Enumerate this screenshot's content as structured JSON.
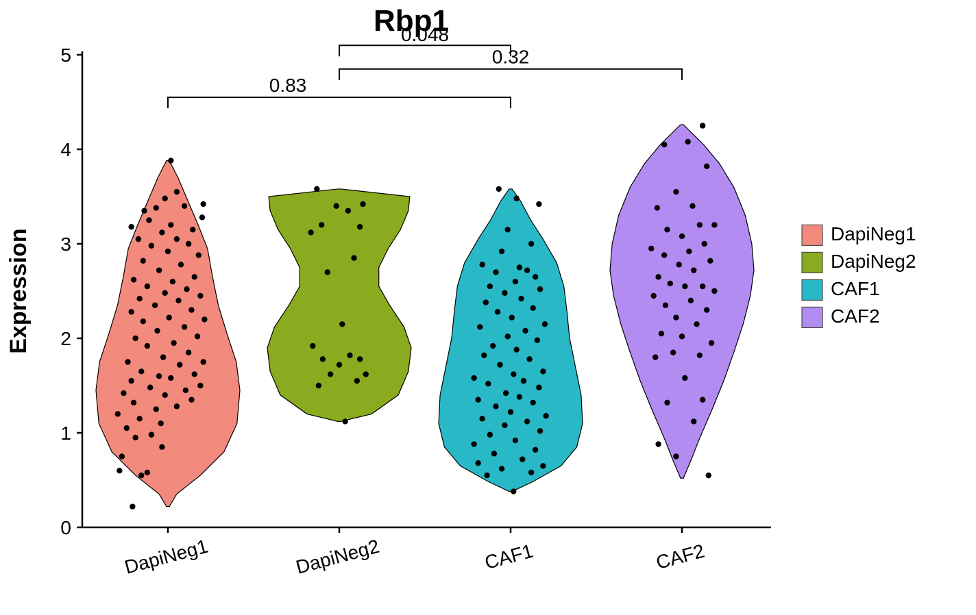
{
  "title": "Rbp1",
  "ylabel": "Expression",
  "ylim": [
    0,
    5
  ],
  "ytick_step": 1,
  "background_color": "#ffffff",
  "axis_color": "#000000",
  "tick_length": 8,
  "tick_fontsize": 28,
  "axis_title_fontsize": 34,
  "title_fontsize": 44,
  "xaxis_label_rotation": -15,
  "point_color": "#000000",
  "point_radius": 4.2,
  "violin_stroke": "#000000",
  "violin_stroke_width": 1.2,
  "groups": [
    {
      "name": "DapiNeg1",
      "color": "#f28b7d"
    },
    {
      "name": "DapiNeg2",
      "color": "#8aaa1f"
    },
    {
      "name": "CAF1",
      "color": "#29b9c6"
    },
    {
      "name": "CAF2",
      "color": "#b38cf2"
    }
  ],
  "legend": {
    "swatch_size": 30,
    "swatch_stroke": "#4d4d4d",
    "items": [
      "DapiNeg1",
      "DapiNeg2",
      "CAF1",
      "CAF2"
    ]
  },
  "comparisons": [
    {
      "from": 0,
      "to": 2,
      "y": 4.55,
      "label": "0.83",
      "label_align": "left-of-center"
    },
    {
      "from": 1,
      "to": 2,
      "y": 5.1,
      "label": "0.048",
      "label_clipped_top": true
    },
    {
      "from": 1,
      "to": 3,
      "y": 4.85,
      "label": "0.32"
    }
  ],
  "violins": {
    "DapiNeg1": {
      "ymin": 0.22,
      "ymax": 3.88,
      "profile": [
        [
          0.22,
          0.02
        ],
        [
          0.35,
          0.12
        ],
        [
          0.55,
          0.45
        ],
        [
          0.8,
          0.78
        ],
        [
          1.1,
          0.96
        ],
        [
          1.45,
          1.0
        ],
        [
          1.75,
          0.95
        ],
        [
          2.05,
          0.82
        ],
        [
          2.35,
          0.7
        ],
        [
          2.65,
          0.62
        ],
        [
          2.95,
          0.55
        ],
        [
          3.2,
          0.42
        ],
        [
          3.45,
          0.28
        ],
        [
          3.7,
          0.14
        ],
        [
          3.88,
          0.02
        ]
      ]
    },
    "DapiNeg2": {
      "ymin": 1.12,
      "ymax": 3.58,
      "profile": [
        [
          1.12,
          0.02
        ],
        [
          1.2,
          0.45
        ],
        [
          1.4,
          0.82
        ],
        [
          1.65,
          0.96
        ],
        [
          1.9,
          1.0
        ],
        [
          2.12,
          0.9
        ],
        [
          2.35,
          0.7
        ],
        [
          2.55,
          0.55
        ],
        [
          2.75,
          0.55
        ],
        [
          2.95,
          0.68
        ],
        [
          3.15,
          0.85
        ],
        [
          3.35,
          0.96
        ],
        [
          3.5,
          0.98
        ],
        [
          3.58,
          0.02
        ]
      ]
    },
    "CAF1": {
      "ymin": 0.38,
      "ymax": 3.58,
      "profile": [
        [
          0.38,
          0.02
        ],
        [
          0.48,
          0.3
        ],
        [
          0.65,
          0.7
        ],
        [
          0.85,
          0.92
        ],
        [
          1.1,
          1.0
        ],
        [
          1.4,
          0.98
        ],
        [
          1.7,
          0.9
        ],
        [
          2.0,
          0.82
        ],
        [
          2.3,
          0.78
        ],
        [
          2.55,
          0.74
        ],
        [
          2.8,
          0.64
        ],
        [
          3.05,
          0.45
        ],
        [
          3.25,
          0.28
        ],
        [
          3.45,
          0.14
        ],
        [
          3.58,
          0.02
        ]
      ]
    },
    "CAF2": {
      "ymin": 0.52,
      "ymax": 4.26,
      "profile": [
        [
          0.52,
          0.02
        ],
        [
          0.7,
          0.12
        ],
        [
          0.95,
          0.25
        ],
        [
          1.25,
          0.42
        ],
        [
          1.55,
          0.58
        ],
        [
          1.85,
          0.72
        ],
        [
          2.15,
          0.85
        ],
        [
          2.45,
          0.95
        ],
        [
          2.72,
          1.0
        ],
        [
          3.0,
          0.97
        ],
        [
          3.3,
          0.88
        ],
        [
          3.6,
          0.72
        ],
        [
          3.85,
          0.52
        ],
        [
          4.05,
          0.3
        ],
        [
          4.26,
          0.02
        ]
      ]
    }
  },
  "points": {
    "DapiNeg1": [
      [
        -0.6,
        0.22
      ],
      [
        -0.45,
        0.55
      ],
      [
        -0.82,
        0.6
      ],
      [
        -0.35,
        0.58
      ],
      [
        -0.78,
        0.75
      ],
      [
        -0.1,
        0.85
      ],
      [
        -0.55,
        0.95
      ],
      [
        -0.28,
        0.98
      ],
      [
        -0.7,
        1.05
      ],
      [
        -0.12,
        1.1
      ],
      [
        -0.48,
        1.15
      ],
      [
        -0.85,
        1.2
      ],
      [
        -0.2,
        1.25
      ],
      [
        0.15,
        1.28
      ],
      [
        -0.58,
        1.32
      ],
      [
        0.4,
        1.35
      ],
      [
        -0.05,
        1.4
      ],
      [
        -0.75,
        1.42
      ],
      [
        0.3,
        1.45
      ],
      [
        -0.3,
        1.48
      ],
      [
        0.55,
        1.5
      ],
      [
        -0.62,
        1.55
      ],
      [
        0.05,
        1.58
      ],
      [
        -0.15,
        1.6
      ],
      [
        0.45,
        1.62
      ],
      [
        -0.45,
        1.65
      ],
      [
        0.2,
        1.72
      ],
      [
        -0.68,
        1.75
      ],
      [
        0.6,
        1.75
      ],
      [
        -0.08,
        1.8
      ],
      [
        0.35,
        1.85
      ],
      [
        -0.35,
        1.92
      ],
      [
        0.1,
        1.95
      ],
      [
        -0.55,
        2.0
      ],
      [
        0.5,
        2.02
      ],
      [
        -0.18,
        2.08
      ],
      [
        0.28,
        2.12
      ],
      [
        -0.42,
        2.18
      ],
      [
        0.62,
        2.2
      ],
      [
        0.02,
        2.22
      ],
      [
        -0.62,
        2.28
      ],
      [
        0.4,
        2.3
      ],
      [
        -0.22,
        2.35
      ],
      [
        0.18,
        2.4
      ],
      [
        -0.48,
        2.42
      ],
      [
        0.55,
        2.45
      ],
      [
        -0.05,
        2.48
      ],
      [
        0.32,
        2.52
      ],
      [
        -0.35,
        2.55
      ],
      [
        0.08,
        2.6
      ],
      [
        -0.58,
        2.62
      ],
      [
        0.45,
        2.65
      ],
      [
        -0.15,
        2.72
      ],
      [
        0.22,
        2.78
      ],
      [
        -0.42,
        2.82
      ],
      [
        0.52,
        2.88
      ],
      [
        0.0,
        2.92
      ],
      [
        -0.28,
        2.98
      ],
      [
        0.35,
        3.0
      ],
      [
        -0.5,
        3.05
      ],
      [
        0.15,
        3.05
      ],
      [
        -0.1,
        3.12
      ],
      [
        0.42,
        3.15
      ],
      [
        -0.62,
        3.18
      ],
      [
        0.05,
        3.2
      ],
      [
        -0.32,
        3.25
      ],
      [
        0.58,
        3.28
      ],
      [
        -0.2,
        3.38
      ],
      [
        0.28,
        3.4
      ],
      [
        0.6,
        3.42
      ],
      [
        -0.05,
        3.48
      ],
      [
        0.15,
        3.55
      ],
      [
        -0.4,
        3.35
      ],
      [
        0.05,
        3.88
      ]
    ],
    "DapiNeg2": [
      [
        0.1,
        1.12
      ],
      [
        -0.35,
        1.5
      ],
      [
        0.3,
        1.55
      ],
      [
        -0.15,
        1.62
      ],
      [
        0.45,
        1.62
      ],
      [
        0.0,
        1.72
      ],
      [
        0.35,
        1.78
      ],
      [
        -0.28,
        1.78
      ],
      [
        0.18,
        1.82
      ],
      [
        -0.45,
        1.92
      ],
      [
        0.05,
        2.15
      ],
      [
        -0.2,
        2.7
      ],
      [
        0.25,
        2.85
      ],
      [
        -0.48,
        3.12
      ],
      [
        0.35,
        3.18
      ],
      [
        -0.3,
        3.2
      ],
      [
        0.15,
        3.35
      ],
      [
        -0.05,
        3.4
      ],
      [
        0.4,
        3.42
      ],
      [
        -0.38,
        3.58
      ]
    ],
    "CAF1": [
      [
        0.05,
        0.38
      ],
      [
        -0.4,
        0.55
      ],
      [
        0.35,
        0.58
      ],
      [
        -0.15,
        0.62
      ],
      [
        0.55,
        0.65
      ],
      [
        -0.55,
        0.68
      ],
      [
        0.2,
        0.72
      ],
      [
        -0.28,
        0.78
      ],
      [
        0.42,
        0.82
      ],
      [
        -0.62,
        0.88
      ],
      [
        0.08,
        0.92
      ],
      [
        -0.35,
        0.98
      ],
      [
        0.5,
        1.02
      ],
      [
        -0.1,
        1.08
      ],
      [
        0.28,
        1.12
      ],
      [
        -0.48,
        1.15
      ],
      [
        0.6,
        1.18
      ],
      [
        0.0,
        1.22
      ],
      [
        -0.25,
        1.28
      ],
      [
        0.38,
        1.32
      ],
      [
        -0.55,
        1.35
      ],
      [
        0.15,
        1.38
      ],
      [
        -0.08,
        1.42
      ],
      [
        0.48,
        1.48
      ],
      [
        -0.38,
        1.52
      ],
      [
        0.22,
        1.55
      ],
      [
        -0.62,
        1.58
      ],
      [
        0.05,
        1.62
      ],
      [
        0.55,
        1.65
      ],
      [
        -0.18,
        1.72
      ],
      [
        0.32,
        1.78
      ],
      [
        -0.45,
        1.82
      ],
      [
        0.1,
        1.88
      ],
      [
        -0.3,
        1.92
      ],
      [
        0.45,
        1.98
      ],
      [
        -0.05,
        2.02
      ],
      [
        0.25,
        2.08
      ],
      [
        -0.52,
        2.12
      ],
      [
        0.58,
        2.15
      ],
      [
        0.02,
        2.22
      ],
      [
        -0.22,
        2.28
      ],
      [
        0.38,
        2.32
      ],
      [
        -0.42,
        2.38
      ],
      [
        0.18,
        2.42
      ],
      [
        -0.1,
        2.48
      ],
      [
        0.5,
        2.52
      ],
      [
        -0.35,
        2.55
      ],
      [
        0.08,
        2.6
      ],
      [
        0.42,
        2.65
      ],
      [
        -0.25,
        2.7
      ],
      [
        0.28,
        2.72
      ],
      [
        -0.48,
        2.78
      ],
      [
        0.15,
        2.75
      ],
      [
        -0.15,
        2.92
      ],
      [
        0.35,
        3.0
      ],
      [
        -0.05,
        3.15
      ],
      [
        0.48,
        3.42
      ],
      [
        0.1,
        3.48
      ],
      [
        -0.2,
        3.58
      ]
    ],
    "CAF2": [
      [
        0.45,
        0.55
      ],
      [
        -0.1,
        0.75
      ],
      [
        -0.4,
        0.88
      ],
      [
        0.2,
        1.12
      ],
      [
        -0.25,
        1.32
      ],
      [
        0.35,
        1.35
      ],
      [
        0.05,
        1.58
      ],
      [
        -0.45,
        1.8
      ],
      [
        0.3,
        1.82
      ],
      [
        -0.15,
        1.85
      ],
      [
        0.5,
        1.95
      ],
      [
        0.0,
        2.02
      ],
      [
        -0.35,
        2.05
      ],
      [
        0.25,
        2.15
      ],
      [
        -0.1,
        2.22
      ],
      [
        0.42,
        2.3
      ],
      [
        -0.28,
        2.35
      ],
      [
        0.15,
        2.4
      ],
      [
        -0.48,
        2.45
      ],
      [
        0.55,
        2.5
      ],
      [
        0.05,
        2.55
      ],
      [
        -0.2,
        2.58
      ],
      [
        0.35,
        2.55
      ],
      [
        -0.4,
        2.65
      ],
      [
        0.2,
        2.72
      ],
      [
        -0.05,
        2.78
      ],
      [
        0.48,
        2.82
      ],
      [
        -0.3,
        2.88
      ],
      [
        0.12,
        2.92
      ],
      [
        -0.52,
        2.95
      ],
      [
        0.38,
        3.0
      ],
      [
        0.0,
        3.08
      ],
      [
        -0.25,
        3.15
      ],
      [
        0.3,
        3.2
      ],
      [
        0.55,
        3.2
      ],
      [
        -0.42,
        3.38
      ],
      [
        0.18,
        3.4
      ],
      [
        -0.1,
        3.55
      ],
      [
        0.42,
        3.82
      ],
      [
        -0.3,
        4.05
      ],
      [
        0.1,
        4.08
      ],
      [
        0.35,
        4.25
      ]
    ]
  }
}
